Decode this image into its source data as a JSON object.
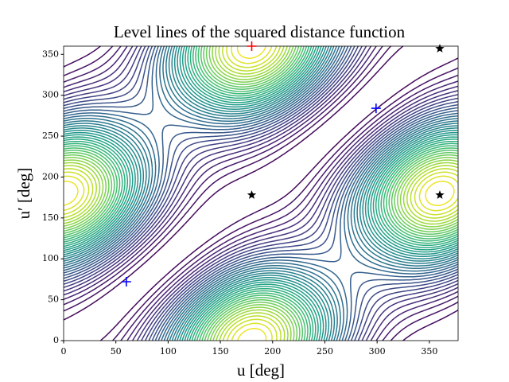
{
  "chart_data": {
    "type": "contour",
    "title": "Level lines of the squared distance function",
    "xlabel": "u [deg]",
    "ylabel": "u′ [deg]",
    "xlim": [
      0,
      377.5
    ],
    "ylim": [
      0,
      360
    ],
    "xticks": [
      0,
      50,
      100,
      150,
      200,
      250,
      300,
      350
    ],
    "yticks": [
      0,
      50,
      100,
      150,
      200,
      250,
      300,
      350
    ],
    "colormap": "viridis",
    "series": [
      {
        "marker": "plus",
        "color": "#0000ff",
        "x": [
          60,
          299
        ],
        "y": [
          72,
          284
        ]
      },
      {
        "marker": "star",
        "color": "#000000",
        "x": [
          180,
          360,
          360
        ],
        "y": [
          178,
          178,
          357
        ]
      },
      {
        "marker": "plus",
        "color": "#ff0000",
        "x": [
          180
        ],
        "y": [
          360
        ]
      }
    ]
  }
}
